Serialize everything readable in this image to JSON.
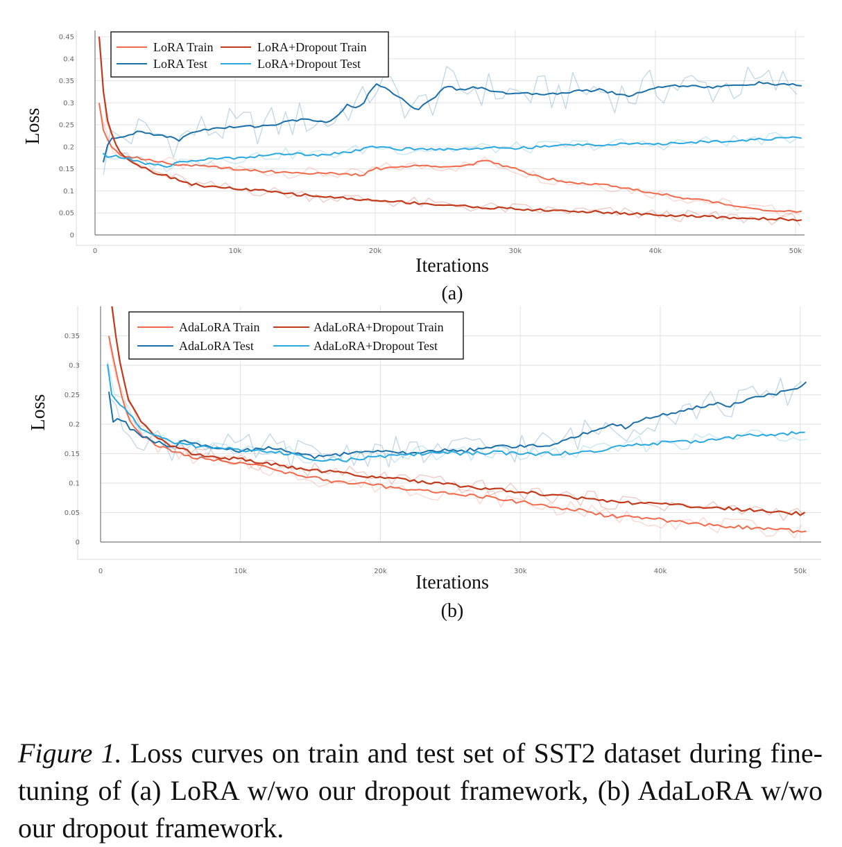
{
  "chart_data": [
    {
      "type": "line",
      "panel_label": "(a)",
      "xlabel": "Iterations",
      "ylabel": "Loss",
      "xlim": [
        0,
        50500
      ],
      "ylim": [
        0,
        0.45
      ],
      "x_ticks": [
        0,
        10000,
        20000,
        30000,
        40000,
        50000
      ],
      "x_tick_labels": [
        "0",
        "10k",
        "20k",
        "30k",
        "40k",
        "50k"
      ],
      "y_ticks": [
        0,
        0.05,
        0.1,
        0.15,
        0.2,
        0.25,
        0.3,
        0.35,
        0.4,
        0.45
      ],
      "y_tick_labels": [
        "0",
        "0.05",
        "0.1",
        "0.15",
        "0.2",
        "0.25",
        "0.3",
        "0.35",
        "0.4",
        "0.45"
      ],
      "grid": true,
      "legend_position": "top-left",
      "series": [
        {
          "name": "LoRA Train",
          "color": "#f26a4b",
          "x": [
            300,
            600,
            1000,
            1500,
            2000,
            3000,
            4000,
            5000,
            6000,
            8000,
            10000,
            12000,
            14000,
            16000,
            18000,
            19000,
            20000,
            22000,
            24000,
            26000,
            28000,
            30000,
            32000,
            34000,
            36000,
            38000,
            40000,
            42000,
            44000,
            46000,
            48000,
            50000,
            50500
          ],
          "values": [
            0.3,
            0.24,
            0.21,
            0.19,
            0.18,
            0.175,
            0.17,
            0.165,
            0.16,
            0.155,
            0.15,
            0.145,
            0.142,
            0.14,
            0.138,
            0.135,
            0.15,
            0.155,
            0.158,
            0.155,
            0.168,
            0.15,
            0.13,
            0.12,
            0.115,
            0.105,
            0.095,
            0.085,
            0.075,
            0.065,
            0.057,
            0.052,
            0.052
          ]
        },
        {
          "name": "LoRA Test",
          "color": "#1a6fa8",
          "x": [
            600,
            1000,
            1500,
            2000,
            2500,
            3000,
            4000,
            5000,
            6000,
            7000,
            8000,
            10000,
            12000,
            13000,
            14000,
            15000,
            16000,
            17000,
            18000,
            19000,
            20000,
            21000,
            22000,
            23000,
            24000,
            25000,
            26000,
            27000,
            28000,
            30000,
            32000,
            34000,
            36000,
            38000,
            40000,
            42000,
            44000,
            46000,
            47500,
            48500,
            50000,
            50500
          ],
          "values": [
            0.165,
            0.215,
            0.222,
            0.222,
            0.225,
            0.235,
            0.23,
            0.225,
            0.215,
            0.235,
            0.24,
            0.245,
            0.248,
            0.252,
            0.258,
            0.265,
            0.255,
            0.26,
            0.295,
            0.29,
            0.345,
            0.33,
            0.305,
            0.285,
            0.305,
            0.34,
            0.33,
            0.335,
            0.33,
            0.32,
            0.32,
            0.325,
            0.33,
            0.315,
            0.335,
            0.34,
            0.335,
            0.34,
            0.345,
            0.342,
            0.34,
            0.338
          ]
        },
        {
          "name": "LoRA+Dropout Train",
          "color": "#c23a1c",
          "x": [
            300,
            500,
            800,
            1200,
            1600,
            2000,
            3000,
            4000,
            5000,
            6000,
            7000,
            8000,
            10000,
            12000,
            14000,
            16000,
            18000,
            20000,
            22000,
            24000,
            26000,
            28000,
            30000,
            32000,
            34000,
            36000,
            38000,
            40000,
            42000,
            44000,
            46000,
            48000,
            50000,
            50500
          ],
          "values": [
            0.45,
            0.35,
            0.27,
            0.23,
            0.2,
            0.18,
            0.16,
            0.145,
            0.135,
            0.125,
            0.115,
            0.11,
            0.105,
            0.1,
            0.093,
            0.088,
            0.083,
            0.078,
            0.075,
            0.07,
            0.066,
            0.062,
            0.059,
            0.056,
            0.054,
            0.052,
            0.049,
            0.046,
            0.043,
            0.041,
            0.038,
            0.037,
            0.035,
            0.034
          ]
        },
        {
          "name": "LoRA+Dropout Test",
          "color": "#2aa8e0",
          "x": [
            600,
            1000,
            1500,
            2000,
            3000,
            4000,
            5000,
            6000,
            8000,
            10000,
            12000,
            14000,
            16000,
            18000,
            20000,
            22000,
            24000,
            26000,
            28000,
            30000,
            32000,
            34000,
            36000,
            38000,
            40000,
            42000,
            44000,
            46000,
            48000,
            50000,
            50500
          ],
          "values": [
            0.185,
            0.175,
            0.178,
            0.175,
            0.168,
            0.16,
            0.155,
            0.165,
            0.172,
            0.175,
            0.18,
            0.185,
            0.182,
            0.188,
            0.2,
            0.195,
            0.195,
            0.195,
            0.198,
            0.197,
            0.2,
            0.205,
            0.205,
            0.207,
            0.205,
            0.21,
            0.212,
            0.215,
            0.218,
            0.22,
            0.22
          ]
        }
      ]
    },
    {
      "type": "line",
      "panel_label": "(b)",
      "xlabel": "Iterations",
      "ylabel": "Loss",
      "xlim": [
        0,
        51500
      ],
      "ylim": [
        0,
        0.4
      ],
      "x_ticks": [
        0,
        10000,
        20000,
        30000,
        40000,
        50000
      ],
      "x_tick_labels": [
        "0",
        "10k",
        "20k",
        "30k",
        "40k",
        "50k"
      ],
      "y_ticks": [
        0,
        0.05,
        0.1,
        0.15,
        0.2,
        0.25,
        0.3,
        0.35
      ],
      "y_tick_labels": [
        "0",
        "0.05",
        "0.1",
        "0.15",
        "0.2",
        "0.25",
        "0.3",
        "0.35"
      ],
      "grid": true,
      "legend_position": "top-left",
      "series": [
        {
          "name": "AdaLoRA Train",
          "color": "#f26a4b",
          "x": [
            600,
            1000,
            1500,
            2000,
            3000,
            4000,
            5000,
            6000,
            7000,
            8000,
            10000,
            12000,
            14000,
            16000,
            18000,
            20000,
            22000,
            24000,
            26000,
            28000,
            30000,
            32000,
            34000,
            36000,
            38000,
            40000,
            42000,
            44000,
            46000,
            48000,
            50000,
            50500
          ],
          "values": [
            0.35,
            0.3,
            0.25,
            0.21,
            0.18,
            0.165,
            0.155,
            0.148,
            0.142,
            0.14,
            0.135,
            0.125,
            0.115,
            0.105,
            0.1,
            0.095,
            0.09,
            0.085,
            0.08,
            0.075,
            0.068,
            0.06,
            0.055,
            0.045,
            0.042,
            0.038,
            0.032,
            0.028,
            0.025,
            0.022,
            0.018,
            0.018
          ]
        },
        {
          "name": "AdaLoRA Test",
          "color": "#1a6fa8",
          "x": [
            600,
            900,
            1300,
            1700,
            2000,
            3000,
            4000,
            5000,
            6000,
            7000,
            8000,
            10000,
            12000,
            14000,
            15000,
            16000,
            17000,
            18000,
            20000,
            22000,
            24000,
            26000,
            28000,
            30000,
            32000,
            34000,
            35500,
            36500,
            37500,
            39000,
            40000,
            41000,
            42000,
            43000,
            44000,
            45000,
            46000,
            47000,
            48000,
            49000,
            50500
          ],
          "values": [
            0.255,
            0.205,
            0.21,
            0.205,
            0.195,
            0.18,
            0.17,
            0.16,
            0.172,
            0.165,
            0.158,
            0.155,
            0.16,
            0.15,
            0.145,
            0.145,
            0.148,
            0.152,
            0.155,
            0.15,
            0.155,
            0.155,
            0.162,
            0.162,
            0.165,
            0.18,
            0.19,
            0.2,
            0.195,
            0.21,
            0.215,
            0.22,
            0.225,
            0.23,
            0.235,
            0.232,
            0.24,
            0.245,
            0.25,
            0.255,
            0.27
          ]
        },
        {
          "name": "AdaLoRA+Dropout Train",
          "color": "#c23a1c",
          "x": [
            800,
            1200,
            1600,
            2000,
            3000,
            4000,
            5000,
            6000,
            7000,
            8000,
            10000,
            12000,
            14000,
            16000,
            18000,
            20000,
            22000,
            24000,
            26000,
            28000,
            30000,
            32000,
            34000,
            36000,
            38000,
            40000,
            42000,
            44000,
            46000,
            48000,
            50000,
            50500
          ],
          "values": [
            0.4,
            0.33,
            0.28,
            0.24,
            0.2,
            0.18,
            0.165,
            0.155,
            0.148,
            0.145,
            0.14,
            0.133,
            0.125,
            0.12,
            0.115,
            0.11,
            0.105,
            0.1,
            0.095,
            0.09,
            0.085,
            0.08,
            0.075,
            0.07,
            0.067,
            0.065,
            0.06,
            0.058,
            0.055,
            0.052,
            0.048,
            0.048
          ]
        },
        {
          "name": "AdaLoRA+Dropout Test",
          "color": "#2aa8e0",
          "x": [
            500,
            800,
            1200,
            1600,
            2000,
            3000,
            4000,
            5000,
            6000,
            7000,
            8000,
            10000,
            12000,
            14000,
            16000,
            18000,
            20000,
            22000,
            24000,
            26000,
            28000,
            30000,
            32000,
            34000,
            36000,
            37000,
            38000,
            40000,
            42000,
            44000,
            46000,
            48000,
            50000,
            50500
          ],
          "values": [
            0.3,
            0.25,
            0.235,
            0.23,
            0.22,
            0.19,
            0.18,
            0.17,
            0.165,
            0.163,
            0.16,
            0.157,
            0.153,
            0.148,
            0.138,
            0.14,
            0.145,
            0.148,
            0.152,
            0.15,
            0.152,
            0.15,
            0.15,
            0.152,
            0.155,
            0.162,
            0.165,
            0.168,
            0.17,
            0.175,
            0.18,
            0.183,
            0.185,
            0.188
          ]
        }
      ]
    }
  ],
  "caption": {
    "label": "Figure 1.",
    "text": "Loss curves on train and test set of SST2 dataset during fine-tuning of (a) LoRA w/wo our dropout framework, (b) AdaLoRA w/wo our dropout framework."
  }
}
